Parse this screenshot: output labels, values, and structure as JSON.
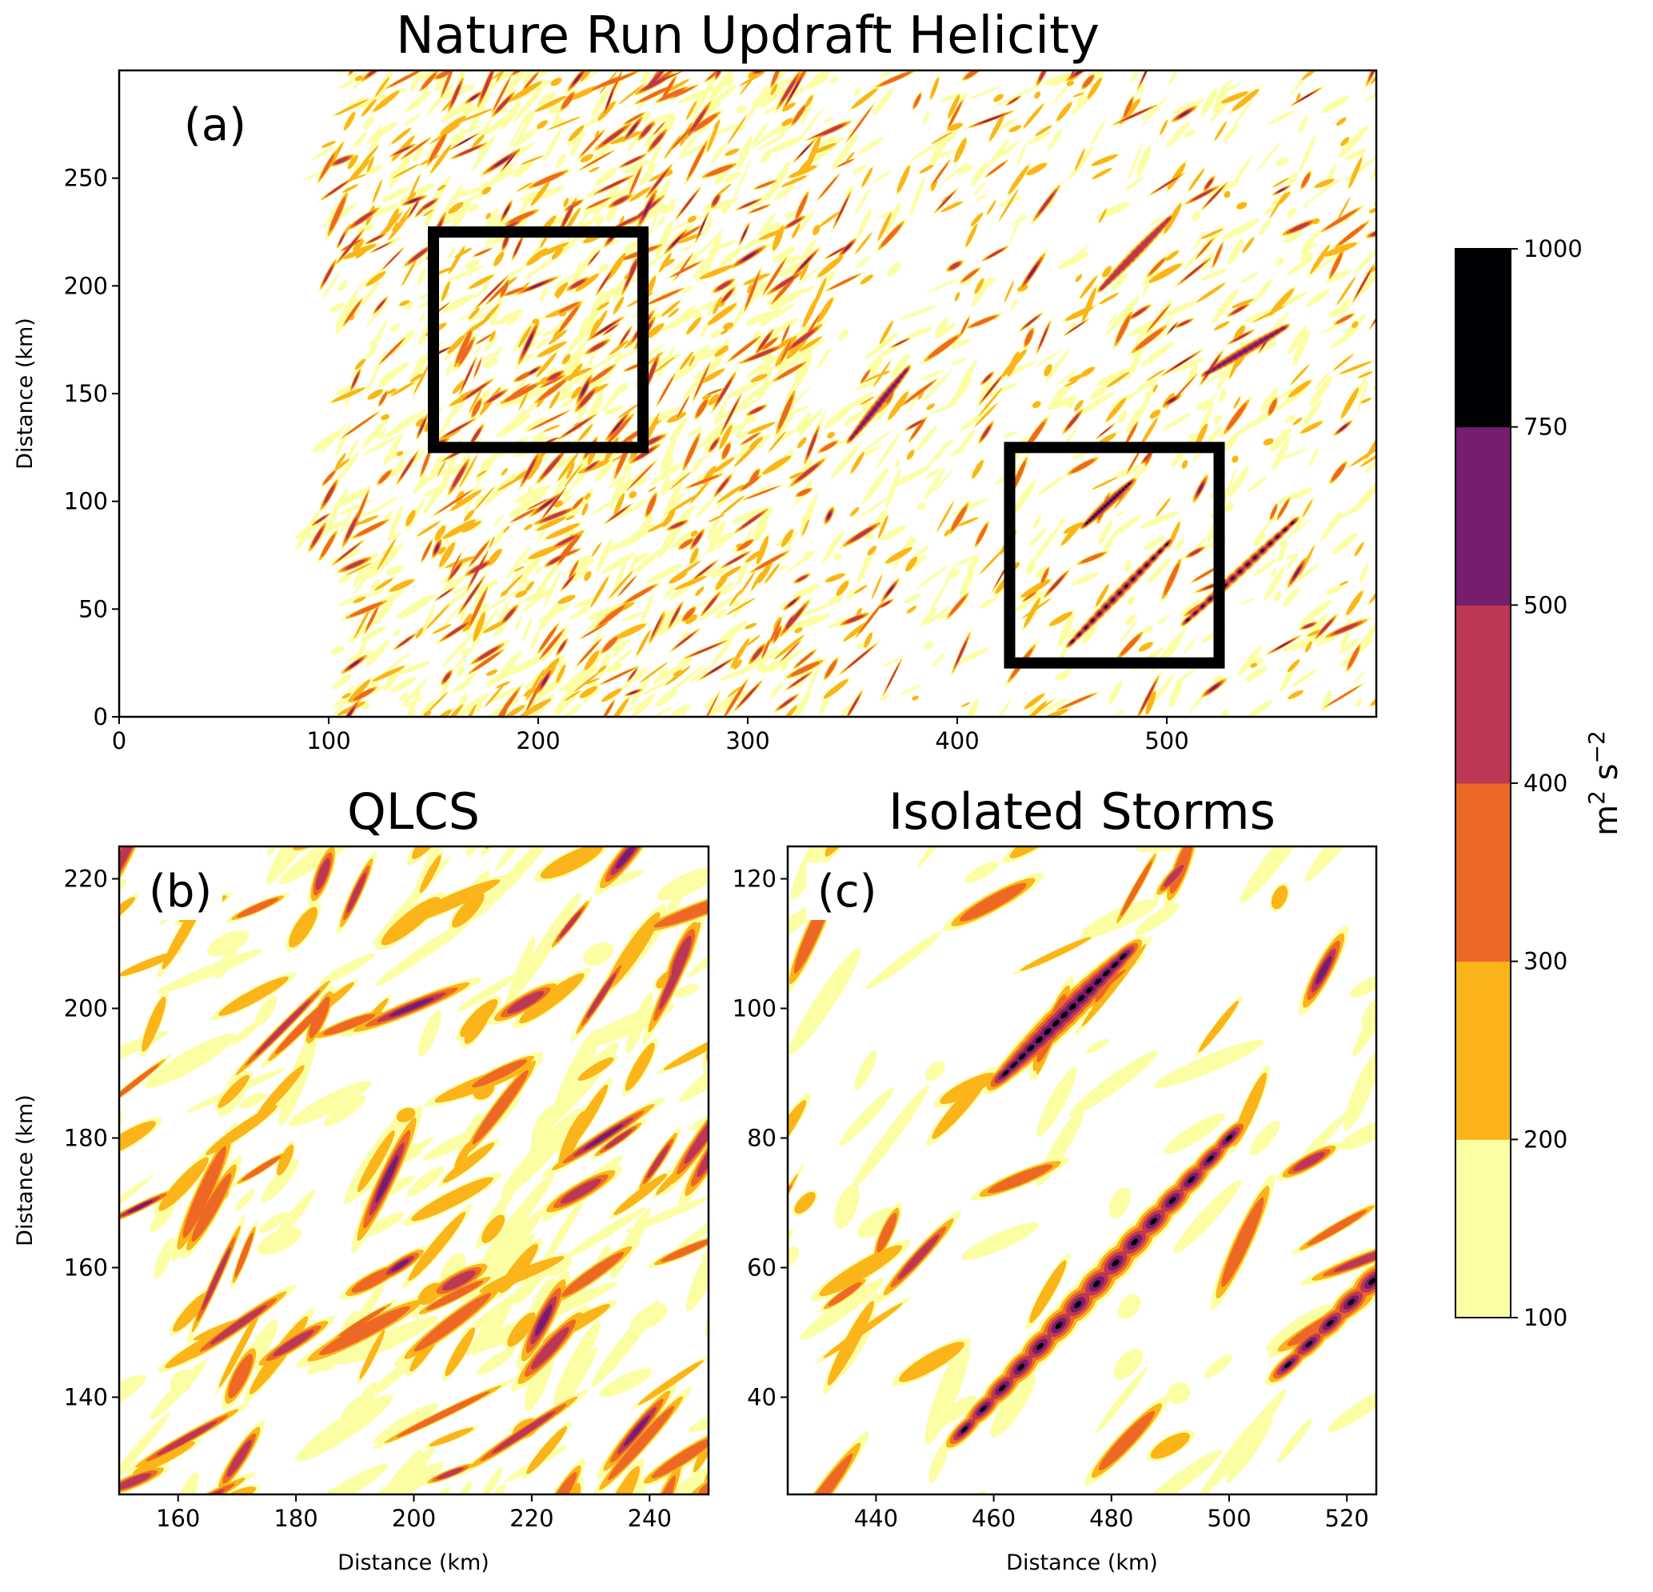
{
  "chart_data": [
    {
      "type": "heatmap",
      "panel": "a",
      "title": "Nature Run Updraft Helicity",
      "panel_label": "(a)",
      "xlabel": "",
      "ylabel": "Distance (km)",
      "xlim": [
        0,
        600
      ],
      "ylim": [
        0,
        300
      ],
      "xticks": [
        "0",
        "100",
        "200",
        "300",
        "400",
        "500"
      ],
      "yticks": [
        "0",
        "50",
        "100",
        "150",
        "200",
        "250"
      ],
      "boxes": [
        {
          "name": "QLCS",
          "x": [
            150,
            250
          ],
          "y": [
            125,
            225
          ]
        },
        {
          "name": "Isolated Storms",
          "x": [
            425,
            525
          ],
          "y": [
            25,
            125
          ]
        }
      ]
    },
    {
      "type": "heatmap",
      "panel": "b",
      "title": "QLCS",
      "panel_label": "(b)",
      "xlabel": "Distance (km)",
      "ylabel": "Distance (km)",
      "xlim": [
        150,
        250
      ],
      "ylim": [
        125,
        225
      ],
      "xticks": [
        "160",
        "180",
        "200",
        "220",
        "240"
      ],
      "yticks": [
        "140",
        "160",
        "180",
        "200",
        "220"
      ]
    },
    {
      "type": "heatmap",
      "panel": "c",
      "title": "Isolated Storms",
      "panel_label": "(c)",
      "xlabel": "Distance (km)",
      "ylabel": "",
      "xlim": [
        425,
        525
      ],
      "ylim": [
        25,
        125
      ],
      "xticks": [
        "440",
        "460",
        "480",
        "500",
        "520"
      ],
      "yticks": [
        "40",
        "60",
        "80",
        "100",
        "120"
      ]
    }
  ],
  "colorbar": {
    "label_base": "m",
    "label_exp1": "2",
    "label_mid": " s",
    "label_exp2": "−2",
    "levels": [
      "100",
      "200",
      "300",
      "400",
      "500",
      "750",
      "1000"
    ],
    "colors": [
      "#fcfea4",
      "#fbb41a",
      "#ed6825",
      "#bb3754",
      "#781c6d",
      "#000004"
    ]
  }
}
